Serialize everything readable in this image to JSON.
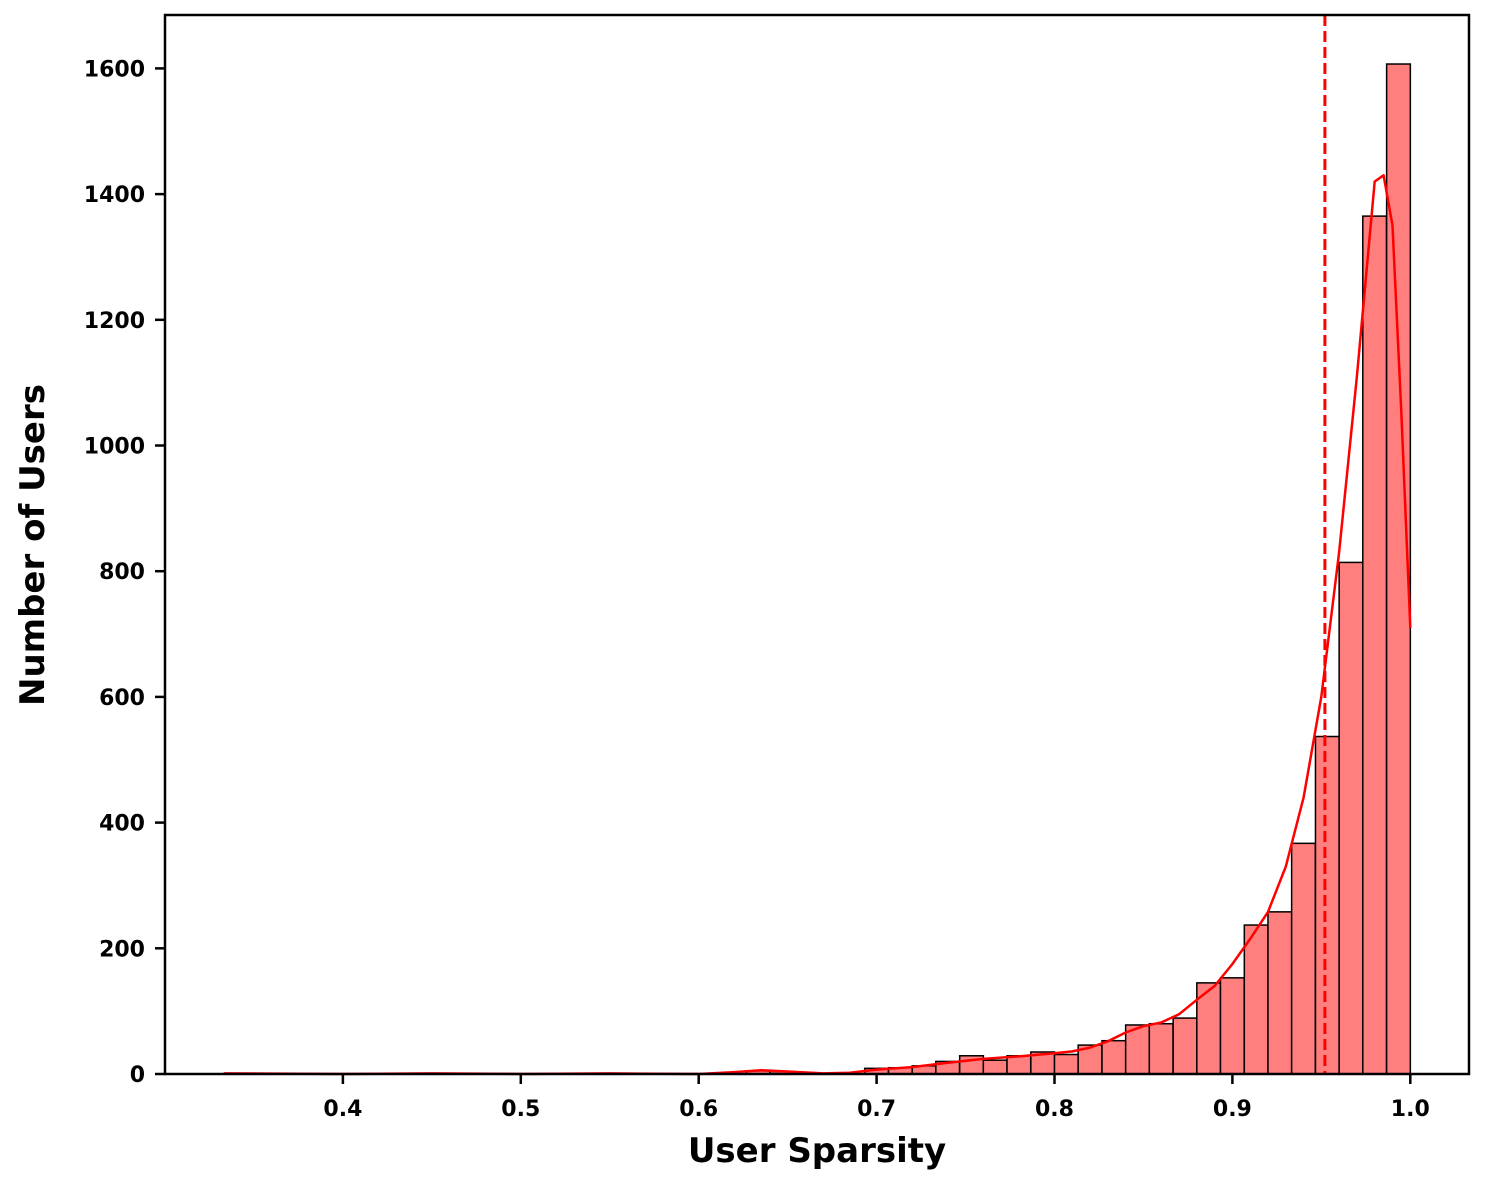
{
  "chart_data": {
    "type": "bar",
    "title": "",
    "xlabel": "User Sparsity",
    "ylabel": "Number of Users",
    "xlim": [
      0.3,
      1.033
    ],
    "ylim": [
      0,
      1685
    ],
    "x_ticks": [
      0.4,
      0.5,
      0.6,
      0.7,
      0.8,
      0.9,
      1.0
    ],
    "x_tick_labels": [
      "0.4",
      "0.5",
      "0.6",
      "0.7",
      "0.8",
      "0.9",
      "1.0"
    ],
    "y_ticks": [
      0,
      200,
      400,
      600,
      800,
      1000,
      1200,
      1400,
      1600
    ],
    "y_tick_labels": [
      "0",
      "200",
      "400",
      "600",
      "800",
      "1000",
      "1200",
      "1400",
      "1600"
    ],
    "bin_width": 0.01333,
    "bins": [
      {
        "x0": 0.6267,
        "count": 5
      },
      {
        "x0": 0.64,
        "count": 4
      },
      {
        "x0": 0.6933,
        "count": 9
      },
      {
        "x0": 0.7067,
        "count": 10
      },
      {
        "x0": 0.72,
        "count": 13
      },
      {
        "x0": 0.7333,
        "count": 20
      },
      {
        "x0": 0.7467,
        "count": 29
      },
      {
        "x0": 0.76,
        "count": 22
      },
      {
        "x0": 0.7733,
        "count": 29
      },
      {
        "x0": 0.7867,
        "count": 35
      },
      {
        "x0": 0.8,
        "count": 31
      },
      {
        "x0": 0.8133,
        "count": 46
      },
      {
        "x0": 0.8267,
        "count": 53
      },
      {
        "x0": 0.84,
        "count": 78
      },
      {
        "x0": 0.8533,
        "count": 80
      },
      {
        "x0": 0.8667,
        "count": 89
      },
      {
        "x0": 0.88,
        "count": 145
      },
      {
        "x0": 0.8933,
        "count": 153
      },
      {
        "x0": 0.9067,
        "count": 237
      },
      {
        "x0": 0.92,
        "count": 258
      },
      {
        "x0": 0.9333,
        "count": 367
      },
      {
        "x0": 0.9467,
        "count": 537
      },
      {
        "x0": 0.96,
        "count": 814
      },
      {
        "x0": 0.9733,
        "count": 1365
      },
      {
        "x0": 0.9867,
        "count": 1607
      }
    ],
    "kde_curve": [
      [
        0.333,
        1
      ],
      [
        0.4,
        0
      ],
      [
        0.45,
        1
      ],
      [
        0.5,
        0
      ],
      [
        0.55,
        1
      ],
      [
        0.6,
        0
      ],
      [
        0.62,
        3
      ],
      [
        0.635,
        6
      ],
      [
        0.65,
        4
      ],
      [
        0.67,
        1
      ],
      [
        0.685,
        2
      ],
      [
        0.7,
        7
      ],
      [
        0.72,
        11
      ],
      [
        0.74,
        18
      ],
      [
        0.76,
        24
      ],
      [
        0.78,
        28
      ],
      [
        0.8,
        33
      ],
      [
        0.81,
        36
      ],
      [
        0.82,
        42
      ],
      [
        0.83,
        52
      ],
      [
        0.84,
        66
      ],
      [
        0.85,
        76
      ],
      [
        0.86,
        82
      ],
      [
        0.87,
        95
      ],
      [
        0.88,
        118
      ],
      [
        0.89,
        140
      ],
      [
        0.9,
        175
      ],
      [
        0.91,
        215
      ],
      [
        0.92,
        258
      ],
      [
        0.93,
        330
      ],
      [
        0.94,
        440
      ],
      [
        0.95,
        600
      ],
      [
        0.96,
        830
      ],
      [
        0.97,
        1110
      ],
      [
        0.98,
        1420
      ],
      [
        0.985,
        1430
      ],
      [
        0.99,
        1350
      ],
      [
        0.995,
        1050
      ],
      [
        1.0,
        710
      ]
    ],
    "series_color": "#ff7f7f",
    "edge_color": "#000000",
    "kde_color": "#ff0000",
    "reference_line": {
      "x": 0.952,
      "color": "#ff0000",
      "style": "dashed"
    }
  }
}
